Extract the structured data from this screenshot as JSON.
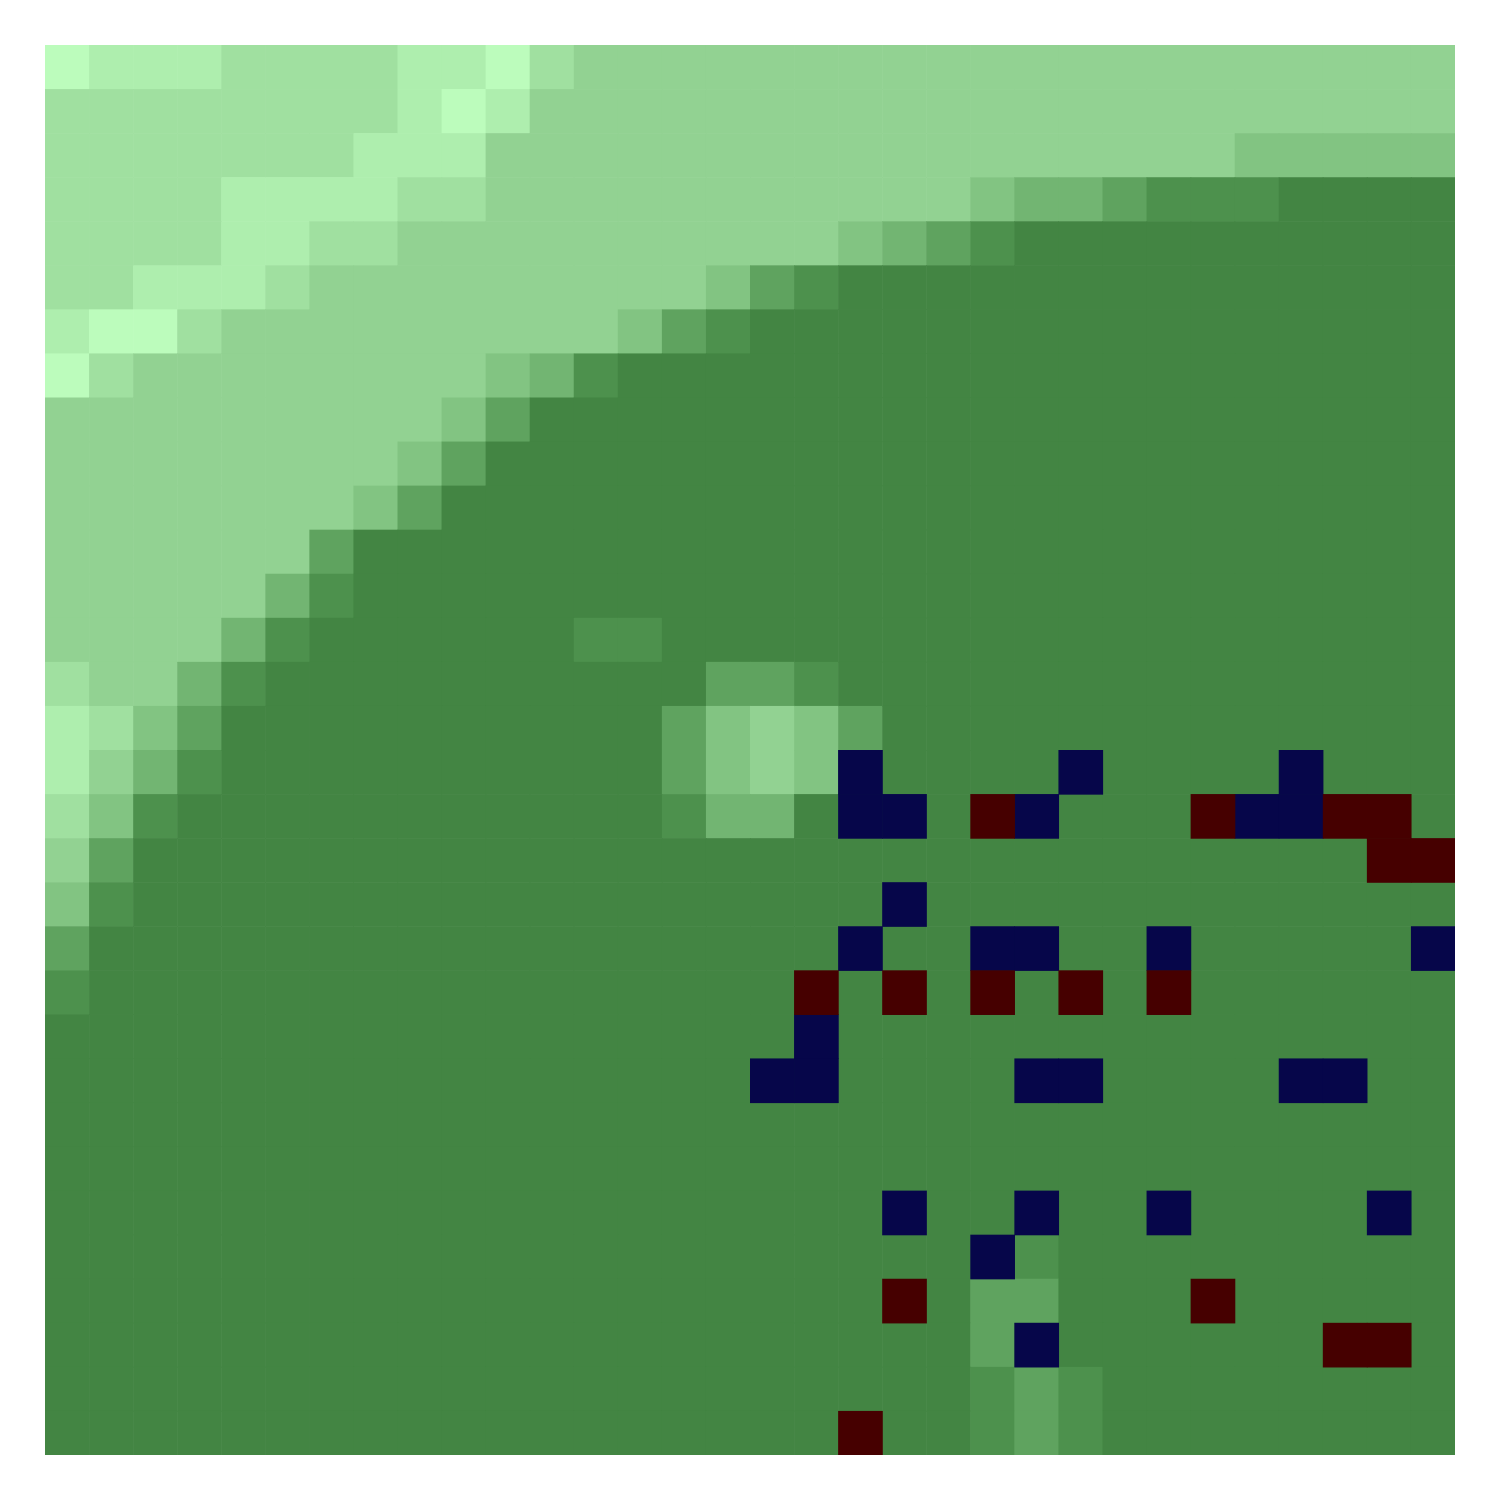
{
  "chart_data": {
    "type": "heatmap",
    "tick_labels": false,
    "clim": [
      0,
      9
    ],
    "colormap": [
      "#3c7c3c",
      "#438543",
      "#4d914d",
      "#5fa35f",
      "#72b572",
      "#82c482",
      "#92d292",
      "#a0e0a0",
      "#aeeeae",
      "#bcfcbc"
    ],
    "cells": [
      [
        9,
        8,
        8,
        8,
        7,
        7,
        7,
        7,
        8,
        8,
        9,
        7,
        6,
        6,
        6,
        6,
        6,
        6,
        6,
        6,
        6,
        6,
        6,
        6,
        6,
        6,
        6,
        6,
        6,
        6,
        6,
        6
      ],
      [
        7,
        7,
        7,
        7,
        7,
        7,
        7,
        7,
        8,
        9,
        8,
        6,
        6,
        6,
        6,
        6,
        6,
        6,
        6,
        6,
        6,
        6,
        6,
        6,
        6,
        6,
        6,
        6,
        6,
        6,
        6,
        6
      ],
      [
        7,
        7,
        7,
        7,
        7,
        7,
        7,
        8,
        8,
        8,
        6,
        6,
        6,
        6,
        6,
        6,
        6,
        6,
        6,
        6,
        6,
        6,
        6,
        6,
        6,
        6,
        6,
        5,
        5,
        5,
        5,
        5
      ],
      [
        7,
        7,
        7,
        7,
        8,
        8,
        8,
        8,
        7,
        7,
        6,
        6,
        6,
        6,
        6,
        6,
        6,
        6,
        6,
        6,
        6,
        5,
        4,
        4,
        3,
        2,
        2,
        2,
        1,
        1,
        1,
        1
      ],
      [
        7,
        7,
        7,
        7,
        8,
        8,
        7,
        7,
        6,
        6,
        6,
        6,
        6,
        6,
        6,
        6,
        6,
        6,
        5,
        4,
        3,
        2,
        1,
        1,
        1,
        1,
        1,
        1,
        1,
        1,
        1,
        1
      ],
      [
        7,
        7,
        8,
        8,
        8,
        7,
        6,
        6,
        6,
        6,
        6,
        6,
        6,
        6,
        6,
        5,
        3,
        2,
        1,
        1,
        1,
        1,
        1,
        1,
        1,
        1,
        1,
        1,
        1,
        1,
        1,
        1
      ],
      [
        8,
        9,
        9,
        7,
        6,
        6,
        6,
        6,
        6,
        6,
        6,
        6,
        6,
        5,
        3,
        2,
        1,
        1,
        1,
        1,
        1,
        1,
        1,
        1,
        1,
        1,
        1,
        1,
        1,
        1,
        1,
        1
      ],
      [
        9,
        7,
        6,
        6,
        6,
        6,
        6,
        6,
        6,
        6,
        5,
        4,
        2,
        1,
        1,
        1,
        1,
        1,
        1,
        1,
        1,
        1,
        1,
        1,
        1,
        1,
        1,
        1,
        1,
        1,
        1,
        1
      ],
      [
        6,
        6,
        6,
        6,
        6,
        6,
        6,
        6,
        6,
        5,
        3,
        1,
        1,
        1,
        1,
        1,
        1,
        1,
        1,
        1,
        1,
        1,
        1,
        1,
        1,
        1,
        1,
        1,
        1,
        1,
        1,
        1
      ],
      [
        6,
        6,
        6,
        6,
        6,
        6,
        6,
        6,
        5,
        3,
        1,
        1,
        1,
        1,
        1,
        1,
        1,
        1,
        1,
        1,
        1,
        1,
        1,
        1,
        1,
        1,
        1,
        1,
        1,
        1,
        1,
        1
      ],
      [
        6,
        6,
        6,
        6,
        6,
        6,
        6,
        5,
        3,
        1,
        1,
        1,
        1,
        1,
        1,
        1,
        1,
        1,
        1,
        1,
        1,
        1,
        1,
        1,
        1,
        1,
        1,
        1,
        1,
        1,
        1,
        1
      ],
      [
        6,
        6,
        6,
        6,
        6,
        6,
        3,
        1,
        1,
        1,
        1,
        1,
        1,
        1,
        1,
        1,
        1,
        1,
        1,
        1,
        1,
        1,
        1,
        1,
        1,
        1,
        1,
        1,
        1,
        1,
        1,
        1
      ],
      [
        6,
        6,
        6,
        6,
        6,
        4,
        2,
        1,
        1,
        1,
        1,
        1,
        1,
        1,
        1,
        1,
        1,
        1,
        1,
        1,
        1,
        1,
        1,
        1,
        1,
        1,
        1,
        1,
        1,
        1,
        1,
        1
      ],
      [
        6,
        6,
        6,
        6,
        4,
        2,
        1,
        1,
        1,
        1,
        1,
        1,
        2,
        2,
        1,
        1,
        1,
        1,
        1,
        1,
        1,
        1,
        1,
        1,
        1,
        1,
        1,
        1,
        1,
        1,
        1,
        1
      ],
      [
        7,
        6,
        6,
        4,
        2,
        1,
        1,
        1,
        1,
        1,
        1,
        1,
        1,
        1,
        1,
        3,
        3,
        2,
        1,
        1,
        1,
        1,
        1,
        1,
        1,
        1,
        1,
        1,
        1,
        1,
        1,
        1
      ],
      [
        8,
        7,
        5,
        3,
        1,
        1,
        1,
        1,
        1,
        1,
        1,
        1,
        1,
        1,
        3,
        5,
        6,
        5,
        3,
        1,
        1,
        1,
        1,
        1,
        1,
        1,
        1,
        1,
        1,
        1,
        1,
        1
      ],
      [
        8,
        6,
        4,
        2,
        1,
        1,
        1,
        1,
        1,
        1,
        1,
        1,
        1,
        1,
        3,
        5,
        6,
        5,
        1,
        1,
        1,
        1,
        1,
        1,
        1,
        1,
        1,
        1,
        1,
        1,
        1,
        1
      ],
      [
        7,
        5,
        2,
        1,
        1,
        1,
        1,
        1,
        1,
        1,
        1,
        1,
        1,
        1,
        2,
        4,
        4,
        1,
        1,
        1,
        1,
        1,
        1,
        1,
        1,
        1,
        1,
        1,
        1,
        1,
        1,
        1
      ],
      [
        6,
        3,
        1,
        1,
        1,
        1,
        1,
        1,
        1,
        1,
        1,
        1,
        1,
        1,
        1,
        1,
        1,
        1,
        1,
        1,
        1,
        1,
        1,
        1,
        1,
        1,
        1,
        1,
        1,
        1,
        1,
        1
      ],
      [
        5,
        2,
        1,
        1,
        1,
        1,
        1,
        1,
        1,
        1,
        1,
        1,
        1,
        1,
        1,
        1,
        1,
        1,
        1,
        1,
        1,
        1,
        1,
        1,
        1,
        1,
        1,
        1,
        1,
        1,
        1,
        1
      ],
      [
        3,
        1,
        1,
        1,
        1,
        1,
        1,
        1,
        1,
        1,
        1,
        1,
        1,
        1,
        1,
        1,
        1,
        1,
        1,
        1,
        1,
        1,
        1,
        1,
        1,
        1,
        1,
        1,
        1,
        1,
        1,
        1
      ],
      [
        2,
        1,
        1,
        1,
        1,
        1,
        1,
        1,
        1,
        1,
        1,
        1,
        1,
        1,
        1,
        1,
        1,
        1,
        1,
        1,
        1,
        1,
        1,
        1,
        1,
        1,
        1,
        1,
        1,
        1,
        1,
        1
      ],
      [
        1,
        1,
        1,
        1,
        1,
        1,
        1,
        1,
        1,
        1,
        1,
        1,
        1,
        1,
        1,
        1,
        1,
        1,
        1,
        1,
        1,
        1,
        1,
        1,
        1,
        1,
        1,
        1,
        1,
        1,
        1,
        1
      ],
      [
        1,
        1,
        1,
        1,
        1,
        1,
        1,
        1,
        1,
        1,
        1,
        1,
        1,
        1,
        1,
        1,
        1,
        1,
        1,
        1,
        1,
        1,
        1,
        1,
        1,
        1,
        1,
        1,
        1,
        1,
        1,
        1
      ],
      [
        1,
        1,
        1,
        1,
        1,
        1,
        1,
        1,
        1,
        1,
        1,
        1,
        1,
        1,
        1,
        1,
        1,
        1,
        1,
        1,
        1,
        1,
        1,
        1,
        1,
        1,
        1,
        1,
        1,
        1,
        1,
        1
      ],
      [
        1,
        1,
        1,
        1,
        1,
        1,
        1,
        1,
        1,
        1,
        1,
        1,
        1,
        1,
        1,
        1,
        1,
        1,
        1,
        1,
        1,
        1,
        1,
        1,
        1,
        1,
        1,
        1,
        1,
        1,
        1,
        1
      ],
      [
        1,
        1,
        1,
        1,
        1,
        1,
        1,
        1,
        1,
        1,
        1,
        1,
        1,
        1,
        1,
        1,
        1,
        1,
        1,
        1,
        1,
        1,
        1,
        1,
        1,
        1,
        1,
        1,
        1,
        1,
        1,
        1
      ],
      [
        1,
        1,
        1,
        1,
        1,
        1,
        1,
        1,
        1,
        1,
        1,
        1,
        1,
        1,
        1,
        1,
        1,
        1,
        1,
        1,
        1,
        1,
        2,
        1,
        1,
        1,
        1,
        1,
        1,
        1,
        1,
        1
      ],
      [
        1,
        1,
        1,
        1,
        1,
        1,
        1,
        1,
        1,
        1,
        1,
        1,
        1,
        1,
        1,
        1,
        1,
        1,
        1,
        1,
        1,
        3,
        3,
        1,
        1,
        1,
        1,
        1,
        1,
        1,
        1,
        1
      ],
      [
        1,
        1,
        1,
        1,
        1,
        1,
        1,
        1,
        1,
        1,
        1,
        1,
        1,
        1,
        1,
        1,
        1,
        1,
        1,
        1,
        1,
        3,
        1,
        1,
        1,
        1,
        1,
        1,
        1,
        1,
        1,
        1
      ],
      [
        1,
        1,
        1,
        1,
        1,
        1,
        1,
        1,
        1,
        1,
        1,
        1,
        1,
        1,
        1,
        1,
        1,
        1,
        1,
        1,
        1,
        2,
        3,
        2,
        1,
        1,
        1,
        1,
        1,
        1,
        1,
        1
      ],
      [
        1,
        1,
        1,
        1,
        1,
        1,
        1,
        1,
        1,
        1,
        1,
        1,
        1,
        1,
        1,
        1,
        1,
        1,
        1,
        1,
        1,
        2,
        3,
        2,
        1,
        1,
        1,
        1,
        1,
        1,
        1,
        1
      ]
    ],
    "markers": {
      "blue": [
        [
          16,
          18
        ],
        [
          16,
          23
        ],
        [
          16,
          28
        ],
        [
          17,
          18
        ],
        [
          17,
          19
        ],
        [
          17,
          22
        ],
        [
          17,
          27
        ],
        [
          17,
          28
        ],
        [
          19,
          19
        ],
        [
          20,
          18
        ],
        [
          20,
          21
        ],
        [
          20,
          22
        ],
        [
          20,
          25
        ],
        [
          20,
          31
        ],
        [
          22,
          17
        ],
        [
          23,
          16
        ],
        [
          23,
          17
        ],
        [
          23,
          22
        ],
        [
          23,
          23
        ],
        [
          23,
          28
        ],
        [
          23,
          29
        ],
        [
          26,
          19
        ],
        [
          26,
          22
        ],
        [
          26,
          25
        ],
        [
          26,
          30
        ],
        [
          27,
          21
        ],
        [
          29,
          22
        ]
      ],
      "red": [
        [
          17,
          21
        ],
        [
          17,
          26
        ],
        [
          17,
          29
        ],
        [
          17,
          30
        ],
        [
          18,
          30
        ],
        [
          18,
          31
        ],
        [
          21,
          17
        ],
        [
          21,
          19
        ],
        [
          21,
          21
        ],
        [
          21,
          23
        ],
        [
          21,
          25
        ],
        [
          28,
          19
        ],
        [
          28,
          26
        ],
        [
          29,
          29
        ],
        [
          29,
          30
        ],
        [
          31,
          18
        ]
      ]
    },
    "marker_colors": {
      "blue": "#06064a",
      "red": "#460000"
    }
  }
}
